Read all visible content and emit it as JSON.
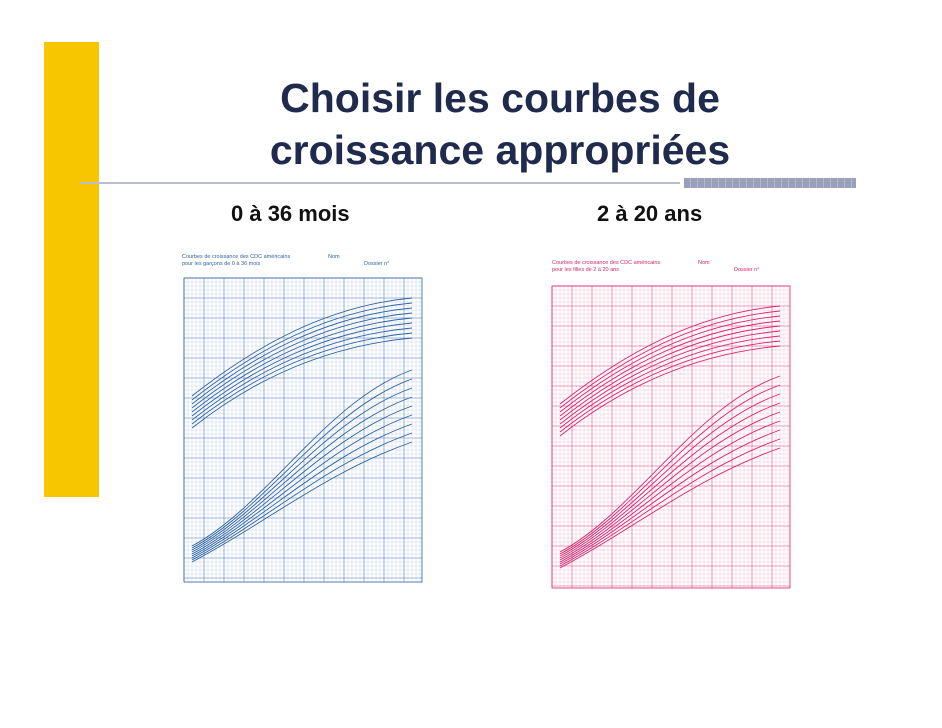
{
  "slide": {
    "title_line1": "Choisir les courbes de",
    "title_line2": "croissance appropriées",
    "columns": [
      {
        "label": "0 à 36 mois"
      },
      {
        "label": "2 à 20 ans"
      }
    ]
  },
  "charts": {
    "left": {
      "color": "#2f63a8",
      "header_line1": "Courbes de croissance des CDC américains",
      "header_line2": "pour les garçons de 0 à 36 mois",
      "name_label": "Nom",
      "file_label": "Dossier n°"
    },
    "right": {
      "color": "#d8246e",
      "header_line1": "Courbes de croissance des CDC américains",
      "header_line2": "pour les filles de 2 à 20 ans",
      "name_label": "Nom",
      "file_label": "Dossier n°"
    }
  }
}
